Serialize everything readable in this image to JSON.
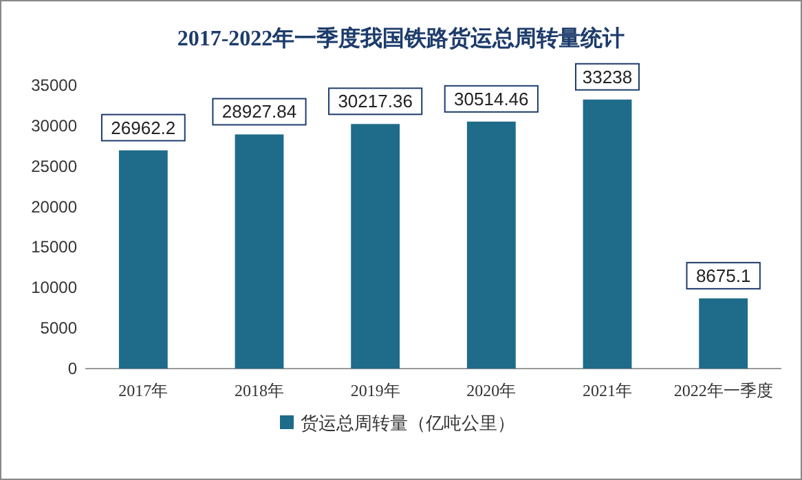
{
  "chart_data": {
    "type": "bar",
    "title": "2017-2022年一季度我国铁路货运总周转量统计",
    "categories": [
      "2017年",
      "2018年",
      "2019年",
      "2020年",
      "2021年",
      "2022年一季度"
    ],
    "series": [
      {
        "name": "货运总周转量（亿吨公里）",
        "color": "#1f6b8a",
        "values": [
          26962.2,
          28927.84,
          30217.36,
          30514.46,
          33238,
          8675.1
        ]
      }
    ],
    "ylim": [
      0,
      35000
    ],
    "yticks": [
      0,
      5000,
      10000,
      15000,
      20000,
      25000,
      30000,
      35000
    ],
    "data_labels": true,
    "legend": "bottom",
    "grid": false
  }
}
